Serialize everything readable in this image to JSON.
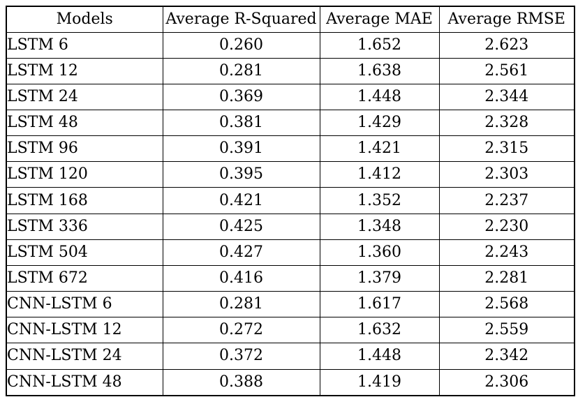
{
  "page": {
    "background_color": "#ffffff",
    "text_color": "#000000",
    "border_color": "#000000"
  },
  "table": {
    "columns": [
      {
        "label": "Models"
      },
      {
        "label": "Average R-Squared"
      },
      {
        "label": "Average MAE"
      },
      {
        "label": "Average RMSE"
      }
    ],
    "rows": [
      {
        "model": "LSTM 6",
        "avg_r_squared": "0.260",
        "avg_mae": "1.652",
        "avg_rmse": "2.623"
      },
      {
        "model": "LSTM 12",
        "avg_r_squared": "0.281",
        "avg_mae": "1.638",
        "avg_rmse": "2.561"
      },
      {
        "model": "LSTM 24",
        "avg_r_squared": "0.369",
        "avg_mae": "1.448",
        "avg_rmse": "2.344"
      },
      {
        "model": "LSTM 48",
        "avg_r_squared": "0.381",
        "avg_mae": "1.429",
        "avg_rmse": "2.328"
      },
      {
        "model": "LSTM 96",
        "avg_r_squared": "0.391",
        "avg_mae": "1.421",
        "avg_rmse": "2.315"
      },
      {
        "model": "LSTM 120",
        "avg_r_squared": "0.395",
        "avg_mae": "1.412",
        "avg_rmse": "2.303"
      },
      {
        "model": "LSTM 168",
        "avg_r_squared": "0.421",
        "avg_mae": "1.352",
        "avg_rmse": "2.237"
      },
      {
        "model": "LSTM 336",
        "avg_r_squared": "0.425",
        "avg_mae": "1.348",
        "avg_rmse": "2.230"
      },
      {
        "model": "LSTM 504",
        "avg_r_squared": "0.427",
        "avg_mae": "1.360",
        "avg_rmse": "2.243"
      },
      {
        "model": "LSTM 672",
        "avg_r_squared": "0.416",
        "avg_mae": "1.379",
        "avg_rmse": "2.281"
      },
      {
        "model": "CNN-LSTM 6",
        "avg_r_squared": "0.281",
        "avg_mae": "1.617",
        "avg_rmse": "2.568"
      },
      {
        "model": "CNN-LSTM 12",
        "avg_r_squared": "0.272",
        "avg_mae": "1.632",
        "avg_rmse": "2.559"
      },
      {
        "model": "CNN-LSTM 24",
        "avg_r_squared": "0.372",
        "avg_mae": "1.448",
        "avg_rmse": "2.342"
      },
      {
        "model": "CNN-LSTM 48",
        "avg_r_squared": "0.388",
        "avg_mae": "1.419",
        "avg_rmse": "2.306"
      }
    ]
  }
}
